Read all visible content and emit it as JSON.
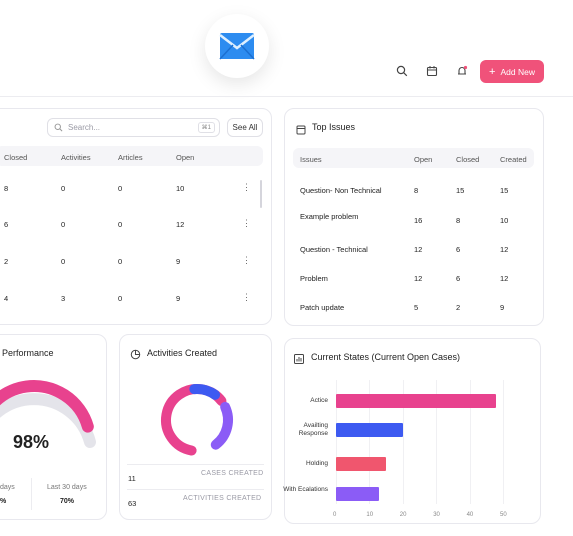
{
  "header": {
    "add_button": "Add New",
    "accent": "#f0527a"
  },
  "cases_table": {
    "search_placeholder": "Search...",
    "search_shortcut": "⌘1",
    "see_all": "See All",
    "columns": [
      "Closed",
      "Activities",
      "Articles",
      "Open"
    ],
    "rows": [
      [
        "8",
        "0",
        "0",
        "10"
      ],
      [
        "6",
        "0",
        "0",
        "12"
      ],
      [
        "2",
        "0",
        "0",
        "9"
      ],
      [
        "4",
        "3",
        "0",
        "9"
      ]
    ]
  },
  "top_issues": {
    "title": "Top Issues",
    "columns": [
      "Issues",
      "Open",
      "Closed",
      "Created"
    ],
    "rows": [
      [
        "Question- Non Technical",
        "8",
        "15",
        "15"
      ],
      [
        "Example problem",
        "16",
        "8",
        "10"
      ],
      [
        "Question - Technical",
        "12",
        "6",
        "12"
      ],
      [
        "Problem",
        "12",
        "6",
        "12"
      ],
      [
        "Patch update",
        "5",
        "2",
        "9"
      ]
    ]
  },
  "performance": {
    "title": "Performance",
    "percent": "98%",
    "percent_value": 98,
    "left_label": "days",
    "left_value": "%",
    "right_label": "Last 30 days",
    "right_value": "70%"
  },
  "activities": {
    "title": "Activities Created",
    "stats": [
      {
        "value": "11",
        "label": "CASES CREATED"
      },
      {
        "value": "63",
        "label": "ACTIVITIES CREATED"
      }
    ]
  },
  "chart_data": {
    "type": "bar",
    "orientation": "horizontal",
    "title": "Current States (Current Open Cases)",
    "categories": [
      "Actice",
      "Availting Response",
      "Holding",
      "With Ecalations"
    ],
    "values": [
      48,
      20,
      15,
      13
    ],
    "colors": [
      "#e8428e",
      "#3d5af1",
      "#f0566e",
      "#8b5cf6"
    ],
    "xlim": [
      0,
      50
    ],
    "xticks": [
      "0",
      "10",
      "20",
      "30",
      "40",
      "50"
    ],
    "grid": true
  }
}
